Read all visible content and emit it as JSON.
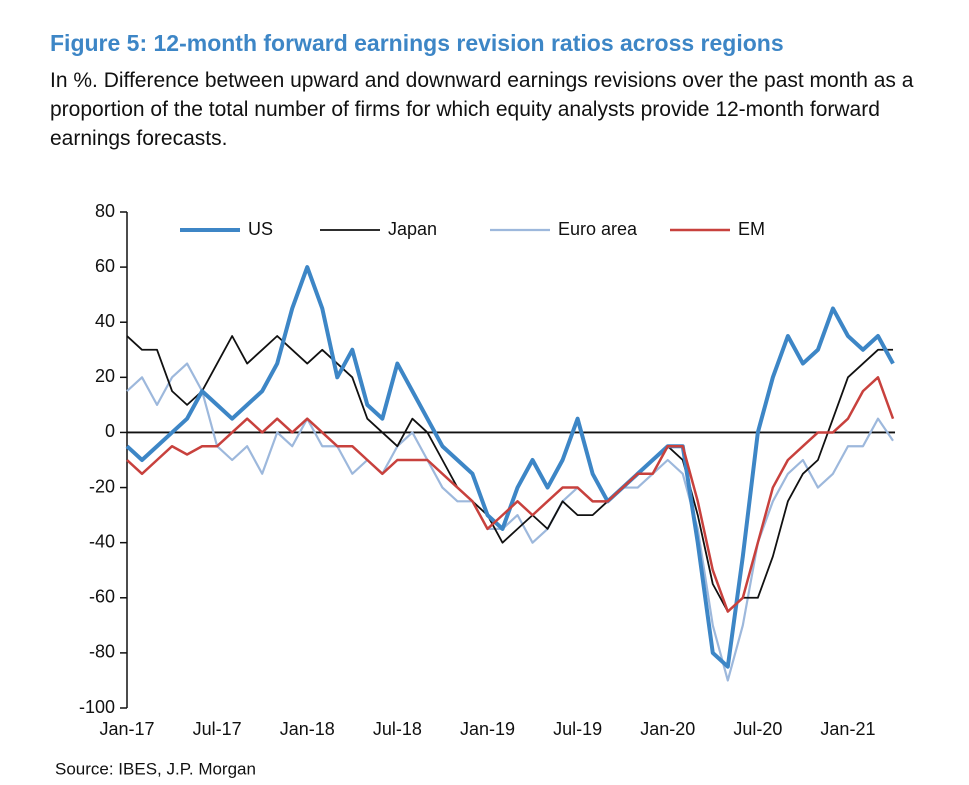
{
  "chart_data": {
    "type": "line",
    "title": "Figure 5: 12-month forward earnings revision ratios across regions",
    "subtitle": "In %. Difference between upward and downward earnings revisions over the past month as a proportion of the total number of firms for which equity analysts provide 12-month forward earnings forecasts.",
    "source": "Source: IBES, J.P. Morgan",
    "categories": [
      "Jan-17",
      null,
      null,
      null,
      null,
      null,
      "Jul-17",
      null,
      null,
      null,
      null,
      null,
      "Jan-18",
      null,
      null,
      null,
      null,
      null,
      "Jul-18",
      null,
      null,
      null,
      null,
      null,
      "Jan-19",
      null,
      null,
      null,
      null,
      null,
      "Jul-19",
      null,
      null,
      null,
      null,
      null,
      "Jan-20",
      null,
      null,
      null,
      null,
      null,
      "Jul-20",
      null,
      null,
      null,
      null,
      null,
      "Jan-21",
      null,
      null,
      null
    ],
    "ylim": [
      -100,
      80
    ],
    "yticks": [
      -100,
      -80,
      -60,
      -40,
      -20,
      0,
      20,
      40,
      60,
      80
    ],
    "legend": "top",
    "series": [
      {
        "name": "US",
        "color": "#3d86c6",
        "width": 4,
        "values": [
          -5,
          -10,
          -5,
          0,
          5,
          15,
          10,
          5,
          10,
          15,
          25,
          45,
          60,
          45,
          20,
          30,
          10,
          5,
          25,
          15,
          5,
          -5,
          -10,
          -15,
          -30,
          -35,
          -20,
          -10,
          -20,
          -10,
          5,
          -15,
          -25,
          -20,
          -15,
          -10,
          -5,
          -5,
          -40,
          -80,
          -85,
          -45,
          0,
          20,
          35,
          25,
          30,
          45,
          35,
          30,
          35,
          25
        ]
      },
      {
        "name": "Japan",
        "color": "#111111",
        "width": 1.8,
        "values": [
          35,
          30,
          30,
          15,
          10,
          15,
          25,
          35,
          25,
          30,
          35,
          30,
          25,
          30,
          25,
          20,
          5,
          0,
          -5,
          5,
          0,
          -10,
          -20,
          -25,
          -30,
          -40,
          -35,
          -30,
          -35,
          -25,
          -30,
          -30,
          -25,
          -20,
          -15,
          -10,
          -5,
          -10,
          -30,
          -55,
          -65,
          -60,
          -60,
          -45,
          -25,
          -15,
          -10,
          5,
          20,
          25,
          30,
          30
        ]
      },
      {
        "name": "Euro area",
        "color": "#9db8dc",
        "width": 2.2,
        "values": [
          15,
          20,
          10,
          20,
          25,
          15,
          -5,
          -10,
          -5,
          -15,
          0,
          -5,
          5,
          -5,
          -5,
          -15,
          -10,
          -15,
          -5,
          0,
          -10,
          -20,
          -25,
          -25,
          -35,
          -35,
          -30,
          -40,
          -35,
          -25,
          -20,
          -25,
          -25,
          -20,
          -20,
          -15,
          -10,
          -15,
          -35,
          -70,
          -90,
          -70,
          -40,
          -25,
          -15,
          -10,
          -20,
          -15,
          -5,
          -5,
          5,
          -3
        ]
      },
      {
        "name": "EM",
        "color": "#c8413d",
        "width": 2.5,
        "values": [
          -10,
          -15,
          -10,
          -5,
          -8,
          -5,
          -5,
          0,
          5,
          0,
          5,
          0,
          5,
          0,
          -5,
          -5,
          -10,
          -15,
          -10,
          -10,
          -10,
          -15,
          -20,
          -25,
          -35,
          -30,
          -25,
          -30,
          -25,
          -20,
          -20,
          -25,
          -25,
          -20,
          -15,
          -15,
          -5,
          -5,
          -25,
          -50,
          -65,
          -60,
          -40,
          -20,
          -10,
          -5,
          0,
          0,
          5,
          15,
          20,
          5
        ]
      }
    ]
  }
}
